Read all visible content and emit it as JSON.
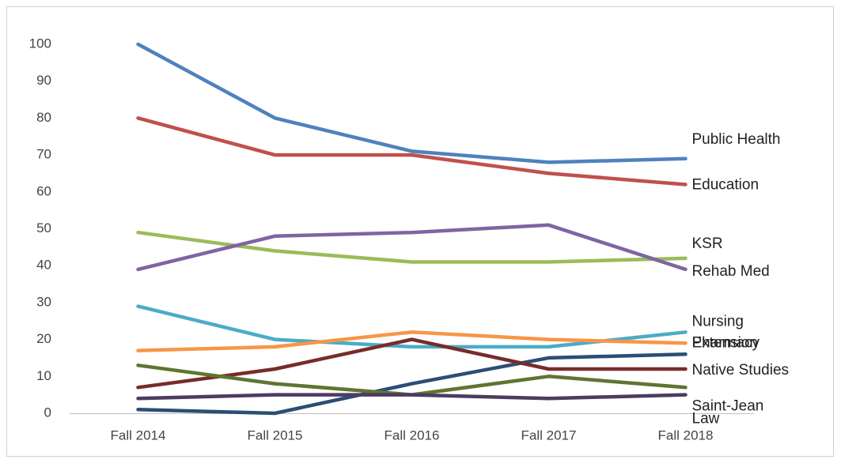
{
  "chart_data": {
    "type": "line",
    "categories": [
      "Fall 2014",
      "Fall 2015",
      "Fall 2016",
      "Fall 2017",
      "Fall 2018"
    ],
    "ylim": [
      0,
      100
    ],
    "yticks": [
      0,
      10,
      20,
      30,
      40,
      50,
      60,
      70,
      80,
      90,
      100
    ],
    "grid": false,
    "series": [
      {
        "name": "Public Health",
        "color": "#4f81bd",
        "values": [
          100,
          80,
          71,
          68,
          69
        ]
      },
      {
        "name": "Education",
        "color": "#c0504d",
        "values": [
          80,
          70,
          70,
          65,
          62
        ]
      },
      {
        "name": "KSR",
        "color": "#9bbb59",
        "values": [
          49,
          44,
          41,
          41,
          42
        ]
      },
      {
        "name": "Rehab Med",
        "color": "#8064a2",
        "values": [
          39,
          48,
          49,
          51,
          39
        ]
      },
      {
        "name": "Nursing",
        "color": "#4bacc6",
        "values": [
          29,
          20,
          18,
          18,
          22
        ]
      },
      {
        "name": "Pharmacy",
        "color": "#f79646",
        "values": [
          17,
          18,
          22,
          20,
          19
        ]
      },
      {
        "name": "Extension",
        "color": "#2c4d75",
        "values": [
          1,
          0,
          8,
          15,
          16
        ]
      },
      {
        "name": "Native Studies",
        "color": "#772c2a",
        "values": [
          7,
          12,
          20,
          12,
          12
        ]
      },
      {
        "name": "Saint-Jean",
        "color": "#5f7530",
        "values": [
          13,
          8,
          5,
          10,
          7
        ]
      },
      {
        "name": "Law",
        "color": "#4d3b62",
        "values": [
          4,
          5,
          5,
          4,
          5
        ]
      }
    ]
  }
}
